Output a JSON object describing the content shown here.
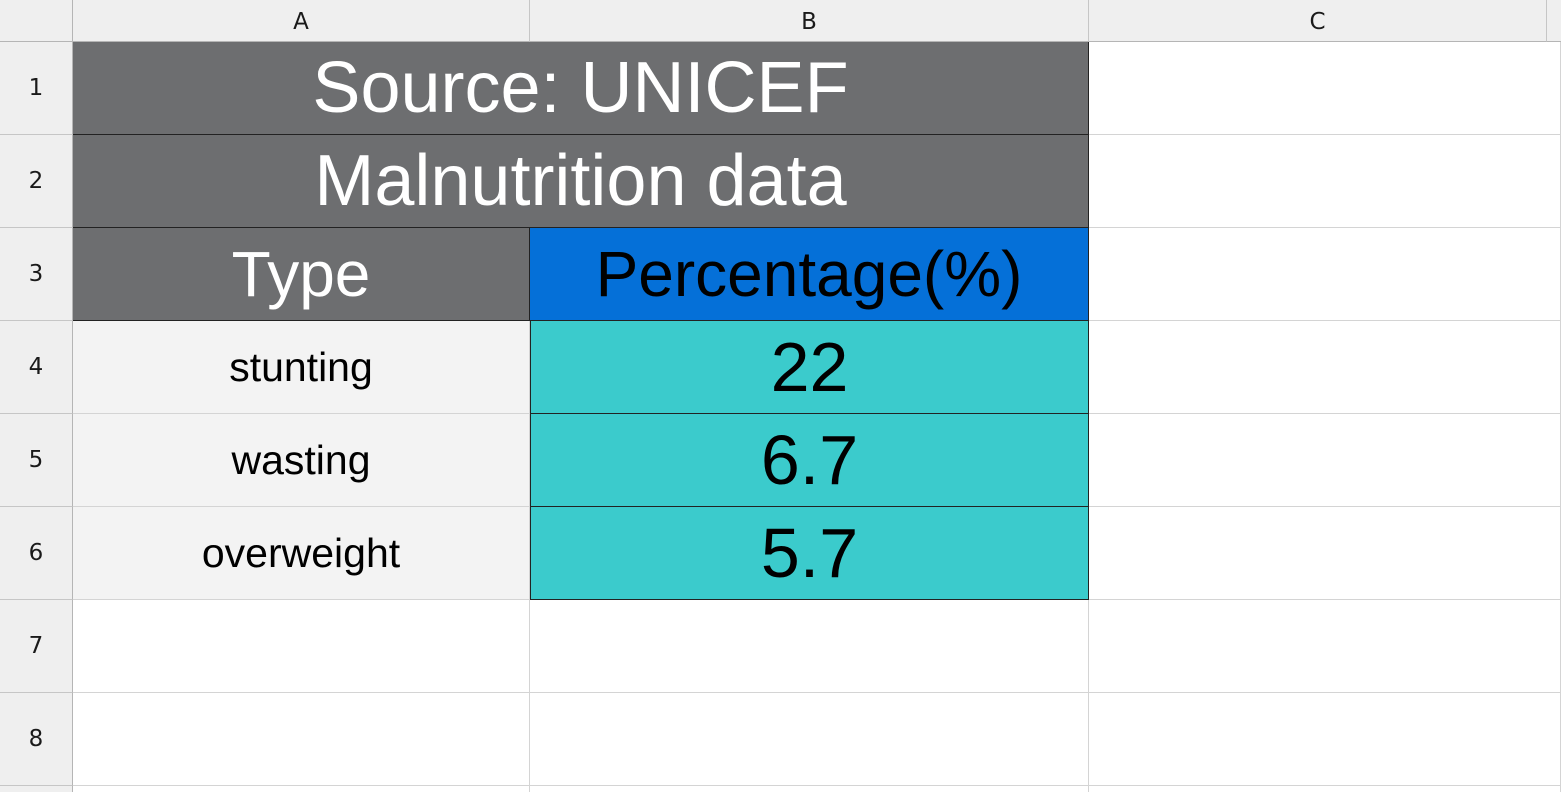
{
  "columns": [
    "A",
    "B",
    "C"
  ],
  "rows": [
    "1",
    "2",
    "3",
    "4",
    "5",
    "6",
    "7",
    "8"
  ],
  "cells": {
    "A1": "Source: UNICEF",
    "A2": "Malnutrition data",
    "A3": "Type",
    "B3": "Percentage(%)",
    "A4": "stunting",
    "B4": "22",
    "A5": "wasting",
    "B5": "6.7",
    "A6": "overweight",
    "B6": "5.7"
  },
  "colors": {
    "header_fill": "#6d6e70",
    "percentage_header_fill": "#0570d8",
    "value_fill": "#3bcbcc",
    "type_fill": "#f3f3f3"
  }
}
